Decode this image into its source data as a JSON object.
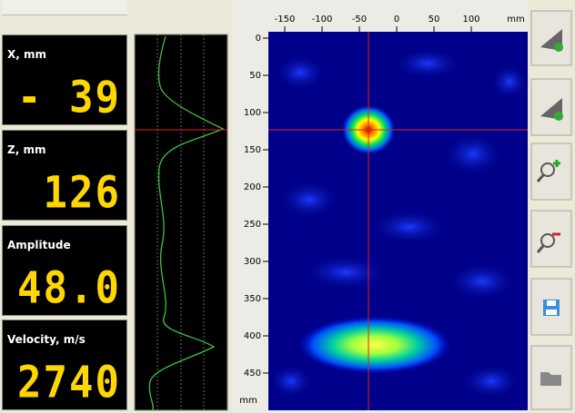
{
  "readouts": [
    {
      "label": "X, mm",
      "value": "- 39"
    },
    {
      "label": "Z, mm",
      "value": "126"
    },
    {
      "label": "Amplitude",
      "value": "48.0"
    },
    {
      "label": "Velocity, m/s",
      "value": "2740"
    }
  ],
  "image": {
    "x_ticks": [
      -150,
      -100,
      -50,
      0,
      50,
      100
    ],
    "x_unit": "mm",
    "z_ticks": [
      0,
      50,
      100,
      150,
      200,
      250,
      300,
      350,
      400,
      450
    ],
    "z_unit": "mm"
  }
}
